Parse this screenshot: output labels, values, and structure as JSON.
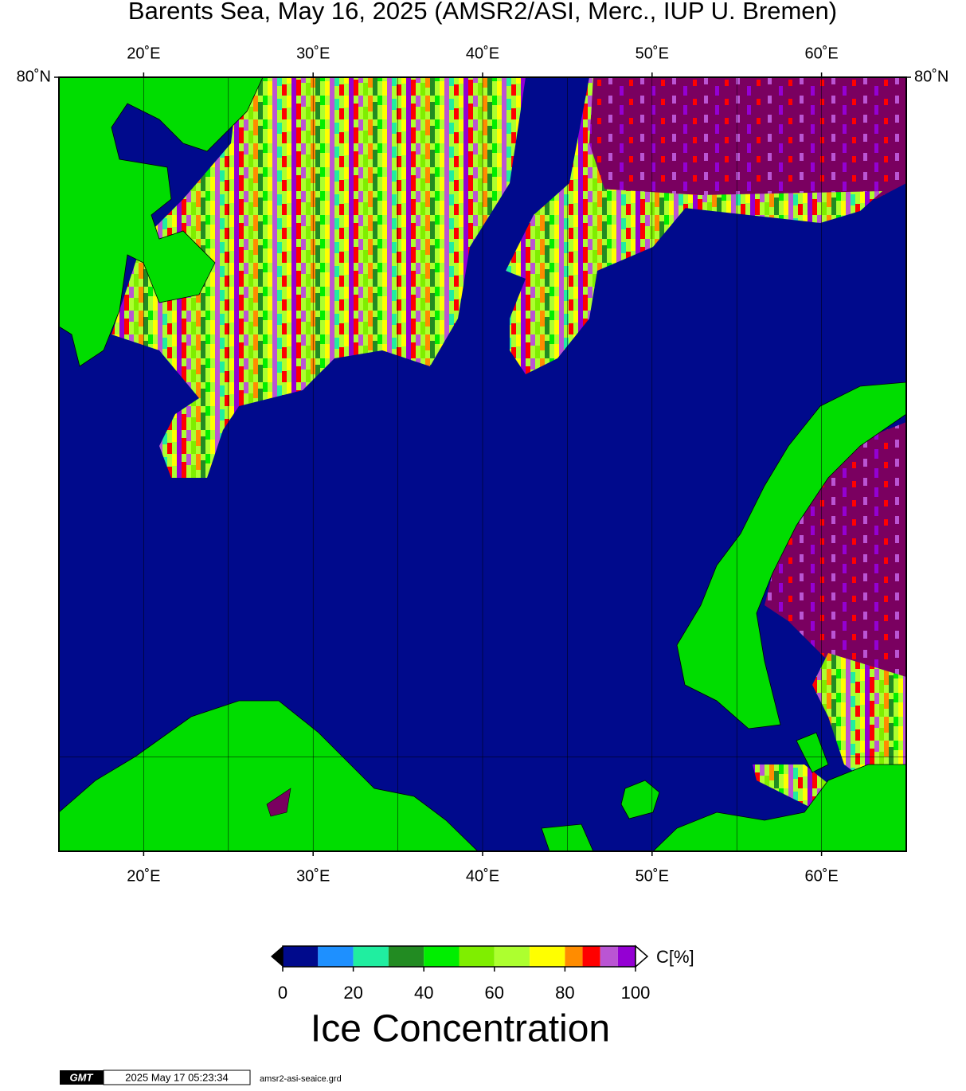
{
  "title": "Barents Sea, May 16, 2025 (AMSR2/ASI, Merc., IUP U. Bremen)",
  "map": {
    "lonlim": [
      15,
      65
    ],
    "latlim": [
      68,
      80
    ],
    "lonticks": [
      {
        "value": 20,
        "label": "20˚E"
      },
      {
        "value": 30,
        "label": "30˚E"
      },
      {
        "value": 40,
        "label": "40˚E"
      },
      {
        "value": 50,
        "label": "50˚E"
      },
      {
        "value": 60,
        "label": "60˚E"
      }
    ],
    "longrid": [
      25,
      35,
      45,
      55
    ],
    "latticks": [
      {
        "value": 80,
        "label": "80˚N"
      }
    ],
    "latgrid": [
      70
    ]
  },
  "colorbar": {
    "bounds": [
      0,
      10,
      20,
      30,
      40,
      50,
      60,
      70,
      80,
      85,
      90,
      95,
      100
    ],
    "colors": [
      "#000a8c",
      "#1e90ff",
      "#20eea0",
      "#228b22",
      "#00ee00",
      "#7fee00",
      "#adff2f",
      "#ffff00",
      "#ff8c00",
      "#ff0000",
      "#ba55d3",
      "#9400d3"
    ],
    "ticks": [
      0,
      20,
      40,
      60,
      80,
      100
    ],
    "unit": "C[%]",
    "title": "Ice Concentration"
  },
  "footer": {
    "logo": "GMT",
    "timestamp": "2025 May 17 05:23:34",
    "file": "amsr2-asi-seaice.grd"
  }
}
